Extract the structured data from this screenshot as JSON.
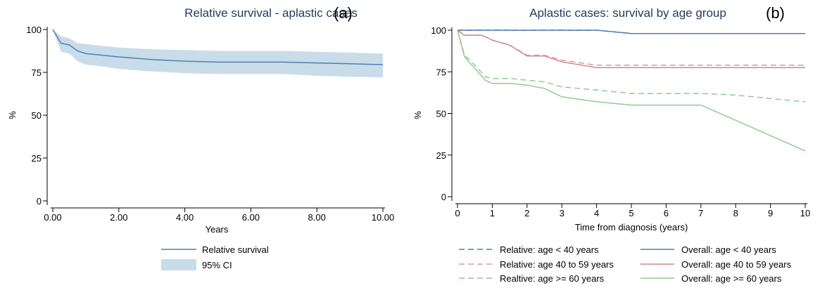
{
  "chart_data": [
    {
      "type": "area",
      "title": "Relative survival - aplastic cases",
      "panel_tag": "(a)",
      "xlabel": "Years",
      "ylabel": "%",
      "xlim": [
        0,
        10
      ],
      "ylim": [
        0,
        100
      ],
      "x_ticks": [
        "0.00",
        "2.00",
        "4.00",
        "6.00",
        "8.00",
        "10.00"
      ],
      "y_ticks": [
        "0",
        "25",
        "50",
        "75",
        "100"
      ],
      "grid": false,
      "legend_position": "bottom",
      "colors": {
        "line": "#4f7fb5",
        "band": "#c9dce9"
      },
      "series": [
        {
          "name": "Relative survival",
          "x": [
            0,
            0.25,
            0.5,
            0.75,
            1,
            1.5,
            2,
            3,
            4,
            5,
            6,
            7,
            8,
            9,
            10
          ],
          "y": [
            100,
            92,
            91,
            87.5,
            86,
            85,
            84,
            82.5,
            81.5,
            81,
            81,
            81,
            80.5,
            80,
            79.5
          ]
        },
        {
          "name": "95% CI",
          "x": [
            0,
            0.25,
            0.5,
            0.75,
            1,
            1.5,
            2,
            3,
            4,
            5,
            6,
            7,
            8,
            9,
            10
          ],
          "lower": [
            100,
            87,
            86,
            81.5,
            79.5,
            78.5,
            77,
            75.5,
            74.5,
            74,
            74,
            74,
            73,
            72.5,
            72
          ],
          "upper": [
            100,
            96,
            95,
            92,
            91.5,
            90.5,
            89.5,
            88.5,
            88,
            87.5,
            87.5,
            87.5,
            87,
            86.5,
            86
          ]
        }
      ]
    },
    {
      "type": "line",
      "title": "Aplastic cases: survival by age group",
      "panel_tag": "(b)",
      "xlabel": "Time from diagnosis (years)",
      "ylabel": "%",
      "xlim": [
        0,
        10
      ],
      "ylim": [
        0,
        100
      ],
      "x_ticks": [
        "0",
        "1",
        "2",
        "3",
        "4",
        "5",
        "6",
        "7",
        "8",
        "9",
        "10"
      ],
      "y_ticks": [
        "0",
        "25",
        "50",
        "75",
        "100"
      ],
      "grid": false,
      "legend_position": "bottom",
      "series": [
        {
          "name": "Relative: age < 40 years",
          "color": "#4f7fb5",
          "dash": true,
          "x": [
            0,
            1,
            2,
            3,
            4,
            5,
            6,
            7,
            8,
            9,
            10
          ],
          "y": [
            100,
            100,
            100,
            100,
            100,
            98,
            98,
            98,
            98,
            98,
            98
          ]
        },
        {
          "name": "Relative: age 40 to 59 years",
          "color": "#d99a9a",
          "dash": true,
          "x": [
            0,
            0.2,
            0.7,
            1,
            1.5,
            2,
            2.5,
            3,
            4,
            5,
            7,
            10
          ],
          "y": [
            100,
            97,
            97,
            94,
            91,
            85,
            85,
            82,
            79,
            79,
            79,
            79
          ]
        },
        {
          "name": "Realtive: age >= 60 years",
          "color": "#8fcc8f",
          "dash": true,
          "x": [
            0,
            0.2,
            0.5,
            0.8,
            1,
            1.5,
            2,
            2.5,
            3,
            4,
            5,
            6,
            7,
            8,
            9,
            10
          ],
          "y": [
            100,
            85,
            79,
            72,
            71,
            71,
            70,
            69,
            66,
            64,
            62,
            62,
            62,
            61,
            59,
            57
          ]
        },
        {
          "name": "Overall: age < 40 years",
          "color": "#4f7fb5",
          "dash": false,
          "x": [
            0,
            1,
            2,
            3,
            4,
            5,
            6,
            7,
            8,
            9,
            10
          ],
          "y": [
            100,
            100,
            100,
            100,
            100,
            98,
            98,
            98,
            98,
            98,
            98
          ]
        },
        {
          "name": "Overall: age  40 to 59 years",
          "color": "#d08a8a",
          "dash": false,
          "x": [
            0,
            0.2,
            0.7,
            1,
            1.5,
            2,
            2.5,
            3,
            4,
            5,
            7,
            10
          ],
          "y": [
            100,
            97,
            97,
            94,
            91,
            84.5,
            84.5,
            81,
            77.5,
            77.5,
            77.5,
            77.5
          ]
        },
        {
          "name": "Overall: age >= 60 years",
          "color": "#8fcc8f",
          "dash": false,
          "x": [
            0,
            0.2,
            0.5,
            0.8,
            1,
            1.5,
            2,
            2.5,
            3,
            4,
            5,
            6,
            7,
            10
          ],
          "y": [
            100,
            84,
            77,
            70,
            68,
            68,
            67,
            65,
            60,
            57,
            55,
            55,
            55,
            27.5
          ]
        }
      ]
    }
  ]
}
